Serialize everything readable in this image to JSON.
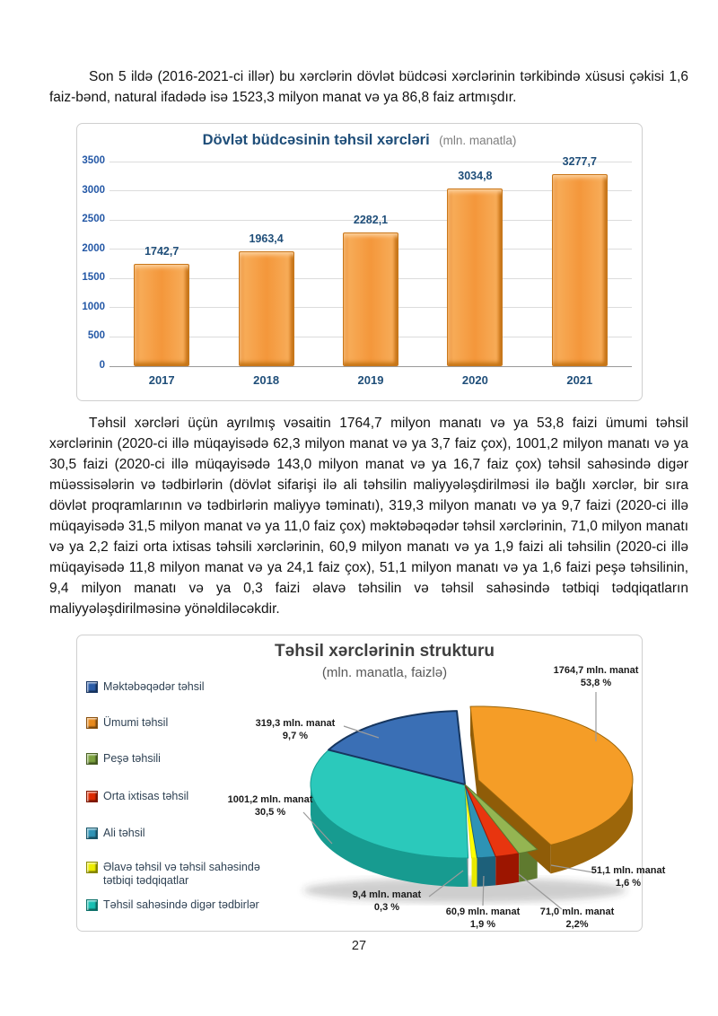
{
  "page_number": "27",
  "paragraphs": {
    "p1": "Son 5 ildə (2016-2021-ci illər) bu xərclərin dövlət büdcəsi xərclərinin tərkibində xüsusi çəkisi 1,6 faiz-bənd, natural ifadədə isə 1523,3 milyon manat və ya 86,8 faiz artmışdır.",
    "p2": "Təhsil xərcləri üçün ayrılmış vəsaitin 1764,7 milyon manatı və ya 53,8 faizi ümumi təhsil xərclərinin (2020-ci illə müqayisədə 62,3 milyon manat və ya 3,7 faiz çox), 1001,2 milyon manatı və ya 30,5 faizi (2020-ci illə müqayisədə 143,0 milyon manat və ya 16,7 faiz çox) təhsil sahəsində digər müəssisələrin və tədbirlərin (dövlət sifarişi ilə ali təhsilin maliyyələşdirilməsi ilə bağlı xərclər, bir sıra dövlət proqramlarının və tədbirlərin maliyyə təminatı), 319,3 milyon manatı və ya 9,7 faizi (2020-ci illə müqayisədə 31,5 milyon manat və ya 11,0 faiz çox) məktəbəqədər təhsil xərclərinin, 71,0 milyon manatı və ya 2,2 faizi orta ixtisas təhsili xərclərinin, 60,9 milyon manatı və ya 1,9 faizi  ali təhsilin (2020-ci illə müqayisədə 11,8 milyon manat və ya 24,1 faiz çox), 51,1 milyon manatı və ya 1,6 faizi peşə təhsilinin, 9,4 milyon manatı və ya 0,3 faizi əlavə təhsilin və təhsil sahəsində tətbiqi tədqiqatların maliyyələşdirilməsinə yönəldiləcəkdir."
  },
  "chart_data": [
    {
      "type": "bar",
      "title": "Dövlət büdcəsinin təhsil xərcləri",
      "subtitle": "(mln. manatla)",
      "categories": [
        "2017",
        "2018",
        "2019",
        "2020",
        "2021"
      ],
      "values": [
        1742.7,
        1963.4,
        2282.1,
        3034.8,
        3277.7
      ],
      "value_labels": [
        "1742,7",
        "1963,4",
        "2282,1",
        "3034,8",
        "3277,7"
      ],
      "xlabel": "",
      "ylabel": "",
      "ylim": [
        0,
        3500
      ],
      "yticks": [
        0,
        500,
        1000,
        1500,
        2000,
        2500,
        3000,
        3500
      ],
      "grid": true,
      "bar_color": "#F4973B",
      "bar_border_color": "#C9771B",
      "axis_label_color": "#2458A6",
      "title_color": "#1F4E79"
    },
    {
      "type": "pie",
      "title": "Təhsil xərclərinin strukturu",
      "subtitle": "(mln. manatla, faizlə)",
      "legend_position": "left",
      "slices": [
        {
          "name": "Ümumi təhsil",
          "value": 1764.7,
          "pct": 53.8,
          "label": "1764,7 mln. manat",
          "pct_label": "53,8 %",
          "color": "#F59D27",
          "side_color": "#9C660A",
          "exploded": true
        },
        {
          "name": "Peşə təhsili",
          "value": 51.1,
          "pct": 1.6,
          "label": "51,1 mln. manat",
          "pct_label": "1,6 %",
          "color": "#94B552",
          "side_color": "#5F7A2F",
          "exploded": false
        },
        {
          "name": "Orta ixtisas təhsil",
          "value": 71.0,
          "pct": 2.2,
          "label": "71,0 mln. manat",
          "pct_label": "2,2%",
          "color": "#E8350F",
          "side_color": "#9C1500",
          "exploded": false
        },
        {
          "name": "Ali təhsil",
          "value": 60.9,
          "pct": 1.9,
          "label": "60,9 mln. manat",
          "pct_label": "1,9 %",
          "color": "#2E93B5",
          "side_color": "#1D607A",
          "exploded": false
        },
        {
          "name": "Əlavə təhsil və təhsil sahəsində tətbiqi tədqiqatlar",
          "value": 9.4,
          "pct": 0.3,
          "label": "9,4 mln. manat",
          "pct_label": "0,3 %",
          "color": "#FFFF00",
          "side_color": "#E8E800",
          "exploded": false
        },
        {
          "name": "Təhsil sahəsində digər tədbirlər",
          "value": 1001.2,
          "pct": 30.5,
          "label": "1001,2 mln. manat",
          "pct_label": "30,5 %",
          "color": "#2BC9BB",
          "side_color": "#179B90",
          "exploded": false
        },
        {
          "name": "Məktəbəqədər təhsil",
          "value": 319.3,
          "pct": 9.7,
          "label": "319,3 mln. manat",
          "pct_label": "9,7 %",
          "color": "#3A6FB5",
          "side_color": "#16365F",
          "exploded": false
        }
      ],
      "legend": [
        {
          "label": "Məktəbəqədər təhsil",
          "color": "#2A5CA8"
        },
        {
          "label": "Ümumi təhsil",
          "color": "#E8891B"
        },
        {
          "label": "Peşə təhsili",
          "color": "#7CA23F"
        },
        {
          "label": "Orta ixtisas təhsil",
          "color": "#DD2A00"
        },
        {
          "label": "Ali təhsil",
          "color": "#2E93B5"
        },
        {
          "label": "Əlavə təhsil və təhsil sahəsində tətbiqi tədqiqatlar",
          "color": "#EDED00"
        },
        {
          "label": "Təhsil sahəsində digər  tədbirlər",
          "color": "#17BFB2"
        }
      ]
    }
  ]
}
